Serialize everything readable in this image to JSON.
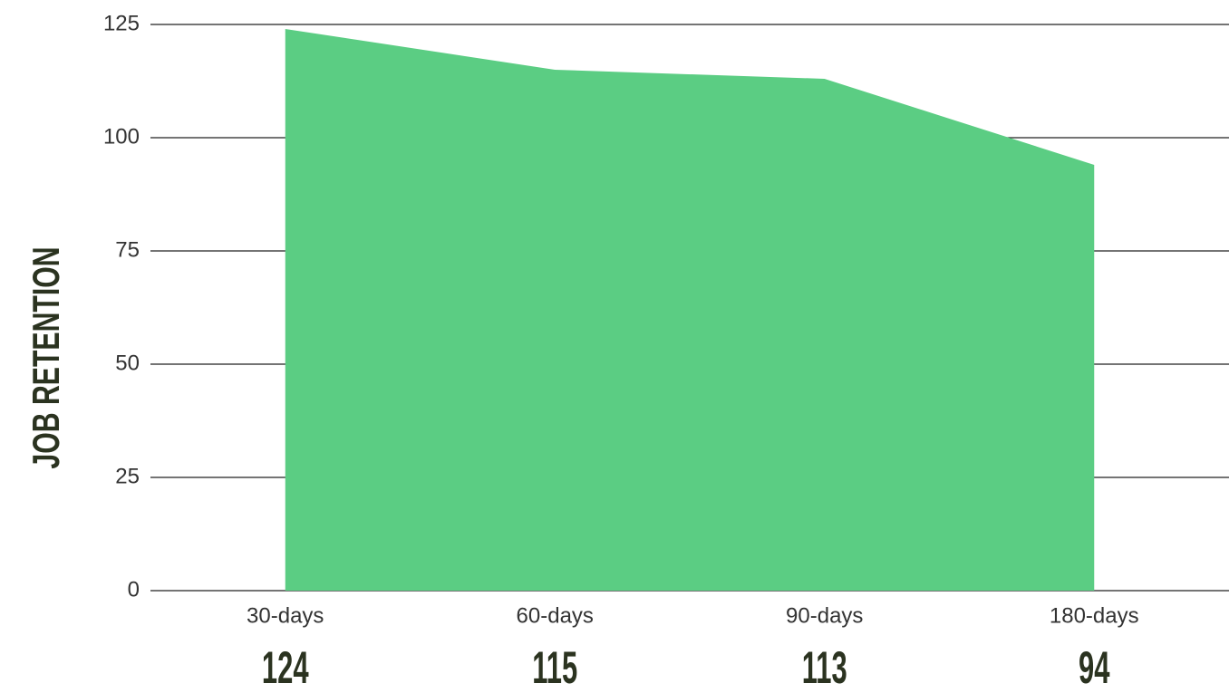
{
  "chart_data": {
    "type": "area",
    "y_label": "JOB RETENTION",
    "categories": [
      "30-days",
      "60-days",
      "90-days",
      "180-days"
    ],
    "values": [
      124,
      115,
      113,
      94
    ],
    "color": "#5bcd83",
    "ylim": [
      0,
      125
    ],
    "yticks": [
      0,
      25,
      50,
      75,
      100,
      125
    ],
    "grid": true
  }
}
